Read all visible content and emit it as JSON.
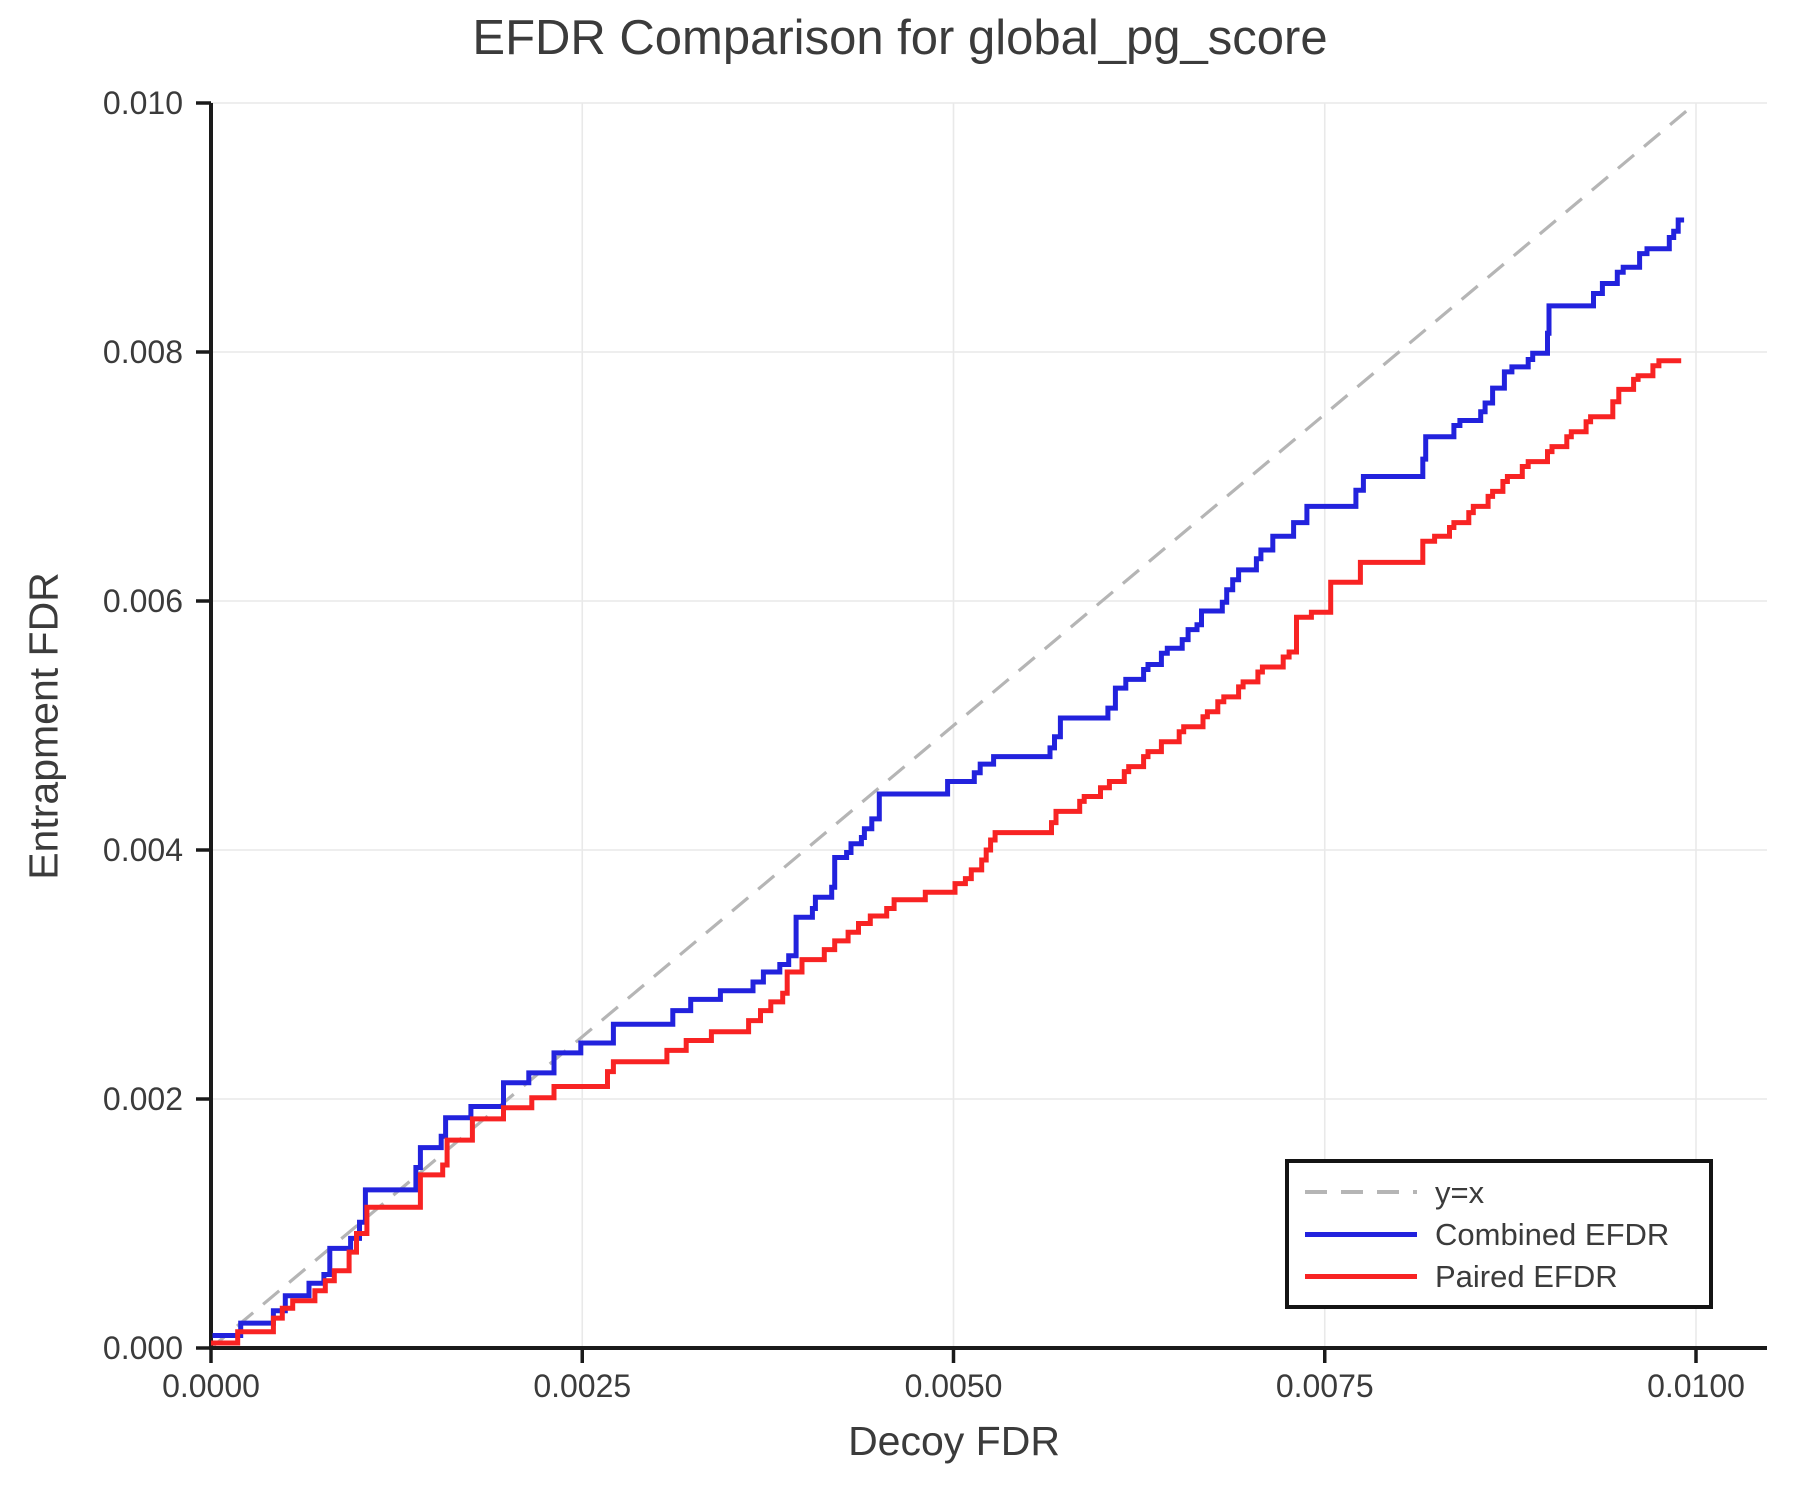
{
  "title": "EFDR Comparison for global_pg_score",
  "axes": {
    "x_label": "Decoy FDR",
    "y_label": "Entrapment FDR"
  },
  "legend": {
    "position": "lower right",
    "items": [
      {
        "label": "y=x",
        "style": "dashed",
        "color": "#b5b5b5"
      },
      {
        "label": "Combined EFDR",
        "style": "solid",
        "color": "#2222dd"
      },
      {
        "label": "Paired EFDR",
        "style": "solid",
        "color": "#f82323"
      }
    ]
  },
  "colors": {
    "text": "#3b3b3b",
    "spine": "#1a1a1a",
    "grid": "#e9e9e9",
    "reference": "#b5b5b5",
    "combined": "#2222dd",
    "paired": "#f82323",
    "background": "#ffffff"
  },
  "chart_data": {
    "type": "line",
    "subtype": "step",
    "title": "EFDR Comparison for global_pg_score",
    "xlabel": "Decoy FDR",
    "ylabel": "Entrapment FDR",
    "xlim": [
      0,
      0.01047
    ],
    "ylim": [
      0,
      0.01
    ],
    "grid": true,
    "legend_position": "lower right",
    "x_ticks": [
      0,
      0.0025,
      0.005,
      0.0075,
      0.01
    ],
    "x_tick_labels": [
      "0.0000",
      "0.0025",
      "0.0050",
      "0.0075",
      "0.0100"
    ],
    "y_ticks": [
      0,
      0.002,
      0.004,
      0.006,
      0.008,
      0.01
    ],
    "y_tick_labels": [
      "0.000",
      "0.002",
      "0.004",
      "0.006",
      "0.008",
      "0.010"
    ],
    "reference": {
      "name": "y=x",
      "from": [
        0,
        0
      ],
      "to": [
        0.01,
        0.01
      ],
      "color": "#b5b5b5",
      "dashed": true
    },
    "series": [
      {
        "name": "Combined EFDR",
        "color": "#2222dd",
        "end_x": 0.00992,
        "points": [
          [
            1e-05,
            0.0001
          ],
          [
            0.0002,
            0.0002
          ],
          [
            0.00042,
            0.0003
          ],
          [
            0.0005,
            0.00042
          ],
          [
            0.00066,
            0.00052
          ],
          [
            0.00076,
            0.00059
          ],
          [
            0.0008,
            0.0008
          ],
          [
            0.00094,
            0.00088
          ],
          [
            0.001,
            0.00101
          ],
          [
            0.00104,
            0.00127
          ],
          [
            0.00138,
            0.00145
          ],
          [
            0.00141,
            0.00161
          ],
          [
            0.00155,
            0.0017
          ],
          [
            0.00158,
            0.00185
          ],
          [
            0.00175,
            0.00194
          ],
          [
            0.00197,
            0.00213
          ],
          [
            0.00214,
            0.00221
          ],
          [
            0.00231,
            0.00237
          ],
          [
            0.00249,
            0.00245
          ],
          [
            0.00271,
            0.0026
          ],
          [
            0.00311,
            0.00271
          ],
          [
            0.00323,
            0.0028
          ],
          [
            0.00343,
            0.00287
          ],
          [
            0.00365,
            0.00294
          ],
          [
            0.00372,
            0.00302
          ],
          [
            0.00383,
            0.00308
          ],
          [
            0.00389,
            0.00315
          ],
          [
            0.00394,
            0.00346
          ],
          [
            0.00405,
            0.00353
          ],
          [
            0.00407,
            0.00362
          ],
          [
            0.00418,
            0.0037
          ],
          [
            0.0042,
            0.00394
          ],
          [
            0.00428,
            0.00398
          ],
          [
            0.00431,
            0.00405
          ],
          [
            0.00438,
            0.0041
          ],
          [
            0.0044,
            0.00417
          ],
          [
            0.00445,
            0.00425
          ],
          [
            0.0045,
            0.00445
          ],
          [
            0.00496,
            0.00455
          ],
          [
            0.00514,
            0.00462
          ],
          [
            0.00518,
            0.00469
          ],
          [
            0.00527,
            0.00475
          ],
          [
            0.00565,
            0.00482
          ],
          [
            0.00568,
            0.00491
          ],
          [
            0.00572,
            0.00506
          ],
          [
            0.00604,
            0.00514
          ],
          [
            0.00609,
            0.0053
          ],
          [
            0.00616,
            0.00537
          ],
          [
            0.00628,
            0.00545
          ],
          [
            0.00631,
            0.00549
          ],
          [
            0.0064,
            0.00558
          ],
          [
            0.00644,
            0.00562
          ],
          [
            0.00654,
            0.00569
          ],
          [
            0.00658,
            0.00577
          ],
          [
            0.00664,
            0.00581
          ],
          [
            0.00667,
            0.00592
          ],
          [
            0.00681,
            0.00599
          ],
          [
            0.00684,
            0.00609
          ],
          [
            0.00688,
            0.00617
          ],
          [
            0.00692,
            0.00625
          ],
          [
            0.00704,
            0.00634
          ],
          [
            0.00707,
            0.00641
          ],
          [
            0.00715,
            0.00652
          ],
          [
            0.00729,
            0.00663
          ],
          [
            0.00738,
            0.00676
          ],
          [
            0.00771,
            0.00689
          ],
          [
            0.00776,
            0.007
          ],
          [
            0.00816,
            0.00714
          ],
          [
            0.00818,
            0.00732
          ],
          [
            0.00837,
            0.00741
          ],
          [
            0.00841,
            0.00745
          ],
          [
            0.00855,
            0.00752
          ],
          [
            0.00858,
            0.00759
          ],
          [
            0.00863,
            0.00771
          ],
          [
            0.00871,
            0.00784
          ],
          [
            0.00876,
            0.00788
          ],
          [
            0.00887,
            0.00794
          ],
          [
            0.0089,
            0.00799
          ],
          [
            0.009,
            0.00815
          ],
          [
            0.00901,
            0.00837
          ],
          [
            0.00931,
            0.00847
          ],
          [
            0.00937,
            0.00855
          ],
          [
            0.00947,
            0.00864
          ],
          [
            0.00951,
            0.00868
          ],
          [
            0.00962,
            0.00879
          ],
          [
            0.00967,
            0.00883
          ],
          [
            0.00982,
            0.00892
          ],
          [
            0.00985,
            0.00897
          ],
          [
            0.00988,
            0.00906
          ]
        ]
      },
      {
        "name": "Paired EFDR",
        "color": "#f82323",
        "end_x": 0.0099,
        "points": [
          [
            0.0,
            4e-05
          ],
          [
            0.00018,
            0.00013
          ],
          [
            0.00042,
            0.00024
          ],
          [
            0.00048,
            0.00032
          ],
          [
            0.00055,
            0.00038
          ],
          [
            0.0007,
            0.00046
          ],
          [
            0.00077,
            0.00054
          ],
          [
            0.00083,
            0.00062
          ],
          [
            0.00093,
            0.00077
          ],
          [
            0.00098,
            0.00092
          ],
          [
            0.00105,
            0.00113
          ],
          [
            0.00141,
            0.00139
          ],
          [
            0.00156,
            0.00147
          ],
          [
            0.00159,
            0.00167
          ],
          [
            0.00176,
            0.00184
          ],
          [
            0.00197,
            0.00193
          ],
          [
            0.00216,
            0.00201
          ],
          [
            0.00231,
            0.0021
          ],
          [
            0.00267,
            0.00222
          ],
          [
            0.00271,
            0.0023
          ],
          [
            0.00307,
            0.00239
          ],
          [
            0.0032,
            0.00247
          ],
          [
            0.00337,
            0.00254
          ],
          [
            0.00362,
            0.00263
          ],
          [
            0.0037,
            0.00271
          ],
          [
            0.00377,
            0.00278
          ],
          [
            0.00385,
            0.00285
          ],
          [
            0.00388,
            0.00302
          ],
          [
            0.00398,
            0.00312
          ],
          [
            0.00413,
            0.0032
          ],
          [
            0.0042,
            0.00327
          ],
          [
            0.00429,
            0.00334
          ],
          [
            0.00436,
            0.00341
          ],
          [
            0.00444,
            0.00347
          ],
          [
            0.00455,
            0.00353
          ],
          [
            0.0046,
            0.0036
          ],
          [
            0.00481,
            0.00366
          ],
          [
            0.00501,
            0.00373
          ],
          [
            0.00508,
            0.00377
          ],
          [
            0.00512,
            0.00384
          ],
          [
            0.00519,
            0.00392
          ],
          [
            0.00522,
            0.004
          ],
          [
            0.00525,
            0.00408
          ],
          [
            0.00528,
            0.00414
          ],
          [
            0.00566,
            0.00422
          ],
          [
            0.00569,
            0.00431
          ],
          [
            0.00585,
            0.00439
          ],
          [
            0.00588,
            0.00443
          ],
          [
            0.00599,
            0.0045
          ],
          [
            0.00605,
            0.00455
          ],
          [
            0.00615,
            0.00463
          ],
          [
            0.00618,
            0.00467
          ],
          [
            0.00628,
            0.00475
          ],
          [
            0.00631,
            0.00479
          ],
          [
            0.0064,
            0.00487
          ],
          [
            0.00652,
            0.00495
          ],
          [
            0.00655,
            0.00499
          ],
          [
            0.00668,
            0.00507
          ],
          [
            0.00671,
            0.00511
          ],
          [
            0.00678,
            0.00519
          ],
          [
            0.00682,
            0.00523
          ],
          [
            0.00692,
            0.00531
          ],
          [
            0.00695,
            0.00535
          ],
          [
            0.00705,
            0.00543
          ],
          [
            0.00708,
            0.00547
          ],
          [
            0.00722,
            0.00555
          ],
          [
            0.00726,
            0.00559
          ],
          [
            0.00731,
            0.00587
          ],
          [
            0.00741,
            0.00591
          ],
          [
            0.00754,
            0.00615
          ],
          [
            0.00774,
            0.00631
          ],
          [
            0.00816,
            0.00648
          ],
          [
            0.00824,
            0.00652
          ],
          [
            0.00834,
            0.00659
          ],
          [
            0.00837,
            0.00663
          ],
          [
            0.00847,
            0.00671
          ],
          [
            0.0085,
            0.00676
          ],
          [
            0.0086,
            0.00684
          ],
          [
            0.00863,
            0.00688
          ],
          [
            0.0087,
            0.00696
          ],
          [
            0.00873,
            0.007
          ],
          [
            0.00883,
            0.00708
          ],
          [
            0.00887,
            0.00712
          ],
          [
            0.009,
            0.0072
          ],
          [
            0.00903,
            0.00724
          ],
          [
            0.00913,
            0.00732
          ],
          [
            0.00916,
            0.00736
          ],
          [
            0.00926,
            0.00744
          ],
          [
            0.00929,
            0.00748
          ],
          [
            0.00944,
            0.0076
          ],
          [
            0.00948,
            0.0077
          ],
          [
            0.00958,
            0.00778
          ],
          [
            0.00961,
            0.00781
          ],
          [
            0.00971,
            0.00789
          ],
          [
            0.00975,
            0.00793
          ]
        ]
      }
    ]
  }
}
